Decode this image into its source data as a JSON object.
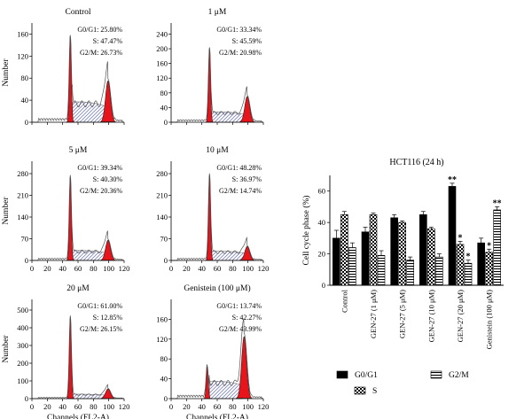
{
  "colors": {
    "g1_fill": "#e8141c",
    "g2_fill": "#e8141c",
    "s_hatch": "#7f86b8",
    "outline": "#555555",
    "bar_g1": "#000000"
  },
  "chart_data": [
    {
      "type": "area",
      "title": "Control",
      "xlabel": "",
      "ylabel": "Number",
      "xlim": [
        0,
        120
      ],
      "ylim": [
        0,
        180
      ],
      "xticks": [
        0,
        20,
        40,
        60,
        80,
        100,
        120
      ],
      "yticks": [
        0,
        40,
        80,
        120,
        160
      ],
      "show_xticks": false,
      "g1_peak": {
        "x": 50,
        "height": 155
      },
      "g2_peak": {
        "x": 99,
        "height": 75
      },
      "s_level": 37,
      "annotations": [
        "G0/G1: 25.80%",
        "S: 47.47%",
        "G2/M: 26.73%"
      ]
    },
    {
      "type": "area",
      "title": "1 μM",
      "xlabel": "",
      "ylabel": "",
      "xlim": [
        0,
        120
      ],
      "ylim": [
        0,
        270
      ],
      "xticks": [
        0,
        20,
        40,
        60,
        80,
        100,
        120
      ],
      "yticks": [
        0,
        40,
        80,
        120,
        160,
        200,
        240
      ],
      "show_xticks": false,
      "g1_peak": {
        "x": 50,
        "height": 200
      },
      "g2_peak": {
        "x": 99,
        "height": 70
      },
      "s_level": 28,
      "annotations": [
        "G0/G1: 33.34%",
        "S: 45.59%",
        "G2/M: 20.98%"
      ]
    },
    {
      "type": "area",
      "title": "5 μM",
      "xlabel": "",
      "ylabel": "Number",
      "xlim": [
        0,
        120
      ],
      "ylim": [
        0,
        320
      ],
      "xticks": [
        0,
        20,
        40,
        60,
        80,
        100,
        120
      ],
      "yticks": [
        0,
        70,
        140,
        210,
        280
      ],
      "show_xticks": true,
      "g1_peak": {
        "x": 50,
        "height": 270
      },
      "g2_peak": {
        "x": 99,
        "height": 65
      },
      "s_level": 32,
      "annotations": [
        "G0/G1: 39.34%",
        "S: 40.30%",
        "G2/M: 20.36%"
      ]
    },
    {
      "type": "area",
      "title": "10 μM",
      "xlabel": "",
      "ylabel": "",
      "xlim": [
        0,
        120
      ],
      "ylim": [
        0,
        320
      ],
      "xticks": [
        0,
        20,
        40,
        60,
        80,
        100,
        120
      ],
      "yticks": [
        0,
        70,
        140,
        210,
        280
      ],
      "show_xticks": true,
      "g1_peak": {
        "x": 50,
        "height": 275
      },
      "g2_peak": {
        "x": 99,
        "height": 45
      },
      "s_level": 30,
      "annotations": [
        "G0/G1: 48.28%",
        "S: 36.97%",
        "G2/M: 14.74%"
      ]
    },
    {
      "type": "area",
      "title": "20 μM",
      "xlabel": "Channels (FL2-A)",
      "ylabel": "Number",
      "xlim": [
        0,
        120
      ],
      "ylim": [
        0,
        560
      ],
      "xticks": [
        0,
        20,
        40,
        60,
        80,
        100,
        120
      ],
      "yticks": [
        0,
        100,
        200,
        300,
        400,
        500
      ],
      "show_xticks": true,
      "g1_peak": {
        "x": 50,
        "height": 460
      },
      "g2_peak": {
        "x": 99,
        "height": 55
      },
      "s_level": 25,
      "annotations": [
        "G0/G1: 61.00%",
        "S: 12.85%",
        "G2/M: 26.15%"
      ]
    },
    {
      "type": "area",
      "title": "Genistein (100 μM)",
      "xlabel": "Channels (FL2-A)",
      "ylabel": "",
      "xlim": [
        0,
        120
      ],
      "ylim": [
        0,
        200
      ],
      "xticks": [
        0,
        20,
        40,
        60,
        80,
        100,
        120
      ],
      "yticks": [
        0,
        40,
        80,
        120,
        160
      ],
      "show_xticks": true,
      "g1_peak": {
        "x": 47,
        "height": 65
      },
      "g2_peak": {
        "x": 95,
        "height": 125
      },
      "s_level": 35,
      "annotations": [
        "G0/G1: 13.74%",
        "S: 42.27%",
        "G2/M: 43.99%"
      ]
    },
    {
      "type": "bar",
      "title": "HCT116 (24 h)",
      "xlabel": "",
      "ylabel": "Cell cycle phase (%)",
      "ylim": [
        0,
        70
      ],
      "yticks": [
        0,
        20,
        40,
        60
      ],
      "categories": [
        "Control",
        "GEN-27 (1 μM)",
        "GEN-27 (5 μM)",
        "GEN-27 (10 μM)",
        "GEN-27 (20 μM)",
        "Genistein (100 μM)"
      ],
      "series": [
        {
          "name": "G0/G1",
          "values": [
            30,
            34,
            43,
            45,
            63,
            27
          ],
          "errors": [
            5,
            3,
            2,
            2,
            2,
            3
          ]
        },
        {
          "name": "S",
          "values": [
            45,
            45,
            40,
            36,
            26,
            21
          ],
          "errors": [
            2,
            1,
            1,
            1,
            2,
            2
          ]
        },
        {
          "name": "G2/M",
          "values": [
            24,
            19,
            16,
            18,
            14,
            48
          ],
          "errors": [
            3,
            3,
            2,
            2,
            2,
            2
          ]
        }
      ],
      "significance": [
        {
          "category": 4,
          "series": 0,
          "label": "**"
        },
        {
          "category": 4,
          "series": 1,
          "label": "*"
        },
        {
          "category": 4,
          "series": 2,
          "label": "*"
        },
        {
          "category": 5,
          "series": 1,
          "label": "*"
        },
        {
          "category": 5,
          "series": 2,
          "label": "**"
        }
      ],
      "legend_position": "bottom"
    }
  ]
}
